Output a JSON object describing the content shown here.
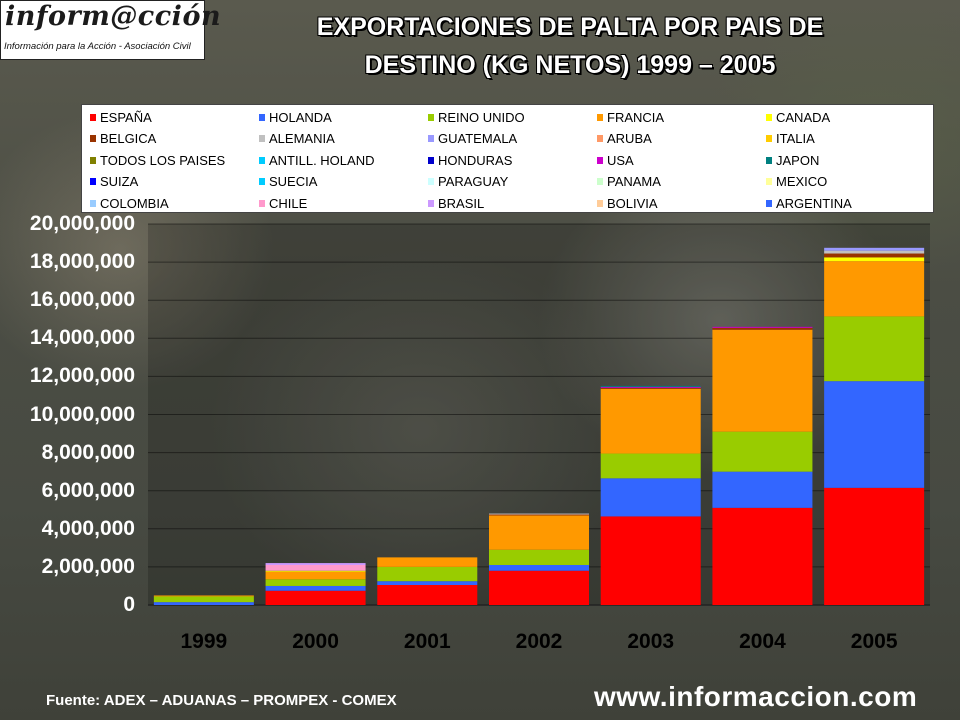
{
  "logo": {
    "main": "inform@cción",
    "sub": "Información para la Acción - Asociación Civil"
  },
  "chart_data": {
    "type": "bar",
    "stacked": true,
    "title": "EXPORTACIONES DE PALTA  POR PAIS DE DESTINO (KG NETOS) 1999 – 2005",
    "title_lines": [
      "EXPORTACIONES DE PALTA  POR PAIS DE",
      "DESTINO (KG NETOS) 1999 – 2005"
    ],
    "categories": [
      "1999",
      "2000",
      "2001",
      "2002",
      "2003",
      "2004",
      "2005"
    ],
    "ylim": [
      0,
      20000000
    ],
    "y_ticks": [
      "20,000,000",
      "18,000,000",
      "16,000,000",
      "14,000,000",
      "12,000,000",
      "10,000,000",
      "8,000,000",
      "6,000,000",
      "4,000,000",
      "2,000,000",
      "0"
    ],
    "legend_position": "top",
    "series": [
      {
        "name": "ESPAÑA",
        "color": "#ff0000",
        "values": [
          0,
          750000,
          1050000,
          1800000,
          4650000,
          5100000,
          6150000
        ]
      },
      {
        "name": "HOLANDA",
        "color": "#3366ff",
        "values": [
          150000,
          250000,
          200000,
          300000,
          2000000,
          1900000,
          5600000
        ]
      },
      {
        "name": "REINO UNIDO",
        "color": "#99cc00",
        "values": [
          300000,
          350000,
          750000,
          800000,
          1300000,
          2100000,
          3400000
        ]
      },
      {
        "name": "FRANCIA",
        "color": "#ff9900",
        "values": [
          50000,
          400000,
          500000,
          1800000,
          3400000,
          5350000,
          2900000
        ]
      },
      {
        "name": "CANADA",
        "color": "#ffff00",
        "values": [
          0,
          50000,
          0,
          0,
          0,
          0,
          200000
        ]
      },
      {
        "name": "BELGICA",
        "color": "#993300",
        "values": [
          0,
          0,
          0,
          50000,
          50000,
          100000,
          200000
        ]
      },
      {
        "name": "ALEMANIA",
        "color": "#c0c0c0",
        "values": [
          0,
          0,
          0,
          50000,
          0,
          0,
          150000
        ]
      },
      {
        "name": "GUATEMALA",
        "color": "#9999ff",
        "values": [
          0,
          0,
          0,
          0,
          0,
          0,
          150000
        ]
      },
      {
        "name": "ARUBA",
        "color": "#ff9966",
        "values": [
          0,
          0,
          0,
          0,
          0,
          0,
          0
        ]
      },
      {
        "name": "ITALIA",
        "color": "#ffcc00",
        "values": [
          0,
          0,
          0,
          0,
          0,
          0,
          0
        ]
      },
      {
        "name": "TODOS LOS PAISES",
        "color": "#808000",
        "values": [
          0,
          0,
          0,
          0,
          0,
          0,
          0
        ]
      },
      {
        "name": "ANTILL. HOLAND",
        "color": "#00ccff",
        "values": [
          0,
          0,
          0,
          0,
          0,
          0,
          0
        ]
      },
      {
        "name": "HONDURAS",
        "color": "#0000cc",
        "values": [
          0,
          0,
          0,
          0,
          0,
          0,
          0
        ]
      },
      {
        "name": "USA",
        "color": "#cc00cc",
        "values": [
          0,
          0,
          0,
          0,
          50000,
          50000,
          0
        ]
      },
      {
        "name": "JAPON",
        "color": "#008080",
        "values": [
          0,
          0,
          0,
          0,
          50000,
          0,
          0
        ]
      },
      {
        "name": "SUIZA",
        "color": "#0000ff",
        "values": [
          0,
          0,
          0,
          0,
          0,
          0,
          0
        ]
      },
      {
        "name": "SUECIA",
        "color": "#00ccff",
        "values": [
          0,
          0,
          0,
          0,
          0,
          0,
          0
        ]
      },
      {
        "name": "PARAGUAY",
        "color": "#ccffff",
        "values": [
          0,
          0,
          0,
          0,
          0,
          0,
          0
        ]
      },
      {
        "name": "PANAMA",
        "color": "#ccffcc",
        "values": [
          0,
          0,
          0,
          0,
          0,
          0,
          0
        ]
      },
      {
        "name": "MEXICO",
        "color": "#ffff99",
        "values": [
          0,
          0,
          0,
          0,
          0,
          0,
          0
        ]
      },
      {
        "name": "COLOMBIA",
        "color": "#99ccff",
        "values": [
          0,
          0,
          0,
          0,
          0,
          0,
          0
        ]
      },
      {
        "name": "CHILE",
        "color": "#ff99cc",
        "values": [
          0,
          300000,
          0,
          0,
          0,
          0,
          0
        ]
      },
      {
        "name": "BRASIL",
        "color": "#cc99ff",
        "values": [
          0,
          100000,
          0,
          0,
          0,
          0,
          0
        ]
      },
      {
        "name": "BOLIVIA",
        "color": "#ffcc99",
        "values": [
          0,
          0,
          0,
          0,
          0,
          0,
          0
        ]
      },
      {
        "name": "ARGENTINA",
        "color": "#3366ff",
        "values": [
          0,
          0,
          0,
          0,
          0,
          0,
          0
        ]
      }
    ]
  },
  "footer": {
    "source": "Fuente: ADEX – ADUANAS – PROMPEX - COMEX",
    "url": "www.informaccion.com"
  }
}
